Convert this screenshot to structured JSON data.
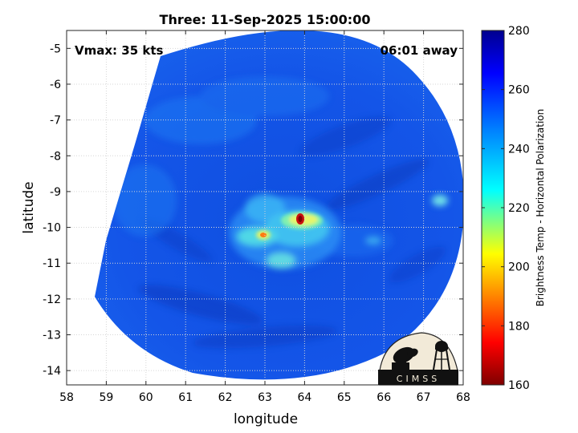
{
  "title": "Three: 11-Sep-2025 15:00:00",
  "annotations": {
    "vmax": "Vmax: 35 kts",
    "time_away": "06:01 away"
  },
  "logo": {
    "text": "CIMSS"
  },
  "chart_data": {
    "type": "heatmap",
    "title": "Three: 11-Sep-2025 15:00:00",
    "xlabel": "longitude",
    "ylabel": "latitude",
    "xlim": [
      58,
      68
    ],
    "ylim": [
      -14.4,
      -4.5
    ],
    "xticks": [
      58,
      59,
      60,
      61,
      62,
      63,
      64,
      65,
      66,
      67,
      68
    ],
    "yticks": [
      -5,
      -6,
      -7,
      -8,
      -9,
      -10,
      -11,
      -12,
      -13,
      -14
    ],
    "grid": true,
    "colorbar": {
      "label": "Brightness Temp - Horizontal Polarization",
      "range": [
        160,
        280
      ],
      "ticks": [
        280,
        260,
        240,
        220,
        200,
        180,
        160
      ],
      "colormap": [
        "#7f0000",
        "#ff0000",
        "#ffff00",
        "#00ffff",
        "#0080ff",
        "#0000ff",
        "#00008f"
      ]
    },
    "features": [
      {
        "name": "coldest-core",
        "lon": 63.8,
        "lat": -9.7,
        "value": 170
      },
      {
        "name": "secondary-core",
        "lon": 62.85,
        "lat": -10.2,
        "value": 195
      }
    ]
  }
}
